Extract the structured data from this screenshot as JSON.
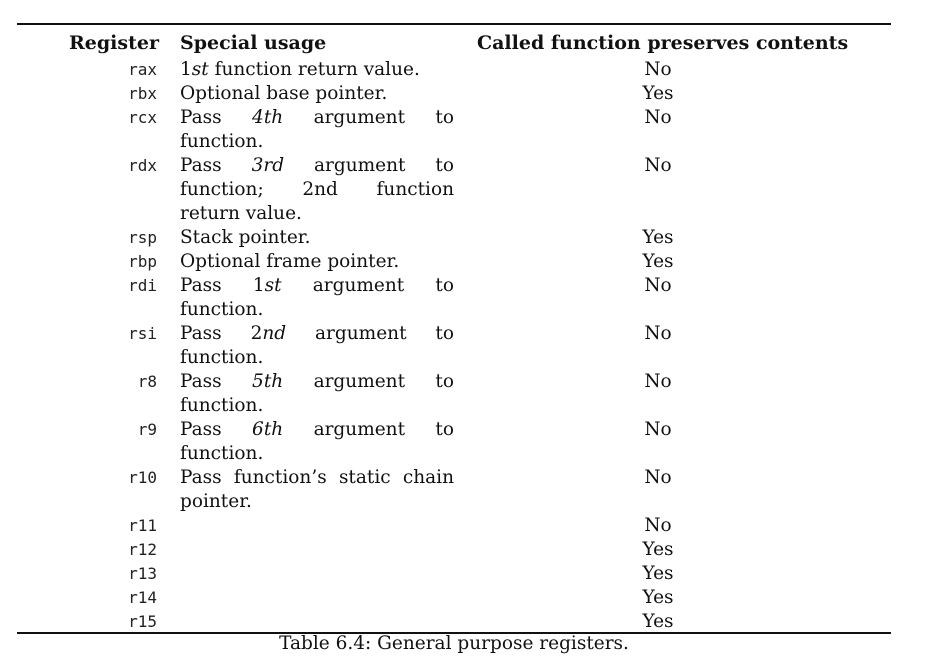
{
  "table": {
    "headers": {
      "register": "Register",
      "usage": "Special usage",
      "preserves": "Called function preserves contents"
    },
    "rows": [
      {
        "register": "rax",
        "usage_parts": [
          "",
          "1",
          "st",
          " function return value."
        ],
        "preserves": "No"
      },
      {
        "register": "rbx",
        "usage_parts": [
          "Optional base pointer.",
          "",
          "",
          ""
        ],
        "preserves": "Yes"
      },
      {
        "register": "rcx",
        "usage_parts": [
          "Pass ",
          "4",
          "th",
          " argument to function."
        ],
        "preserves": "No"
      },
      {
        "register": "rdx",
        "usage_parts": [
          "Pass ",
          "3",
          "rd",
          " argument to function; 2nd function return value."
        ],
        "preserves": "No"
      },
      {
        "register": "rsp",
        "usage_parts": [
          "Stack pointer.",
          "",
          "",
          ""
        ],
        "preserves": "Yes"
      },
      {
        "register": "rbp",
        "usage_parts": [
          "Optional frame pointer.",
          "",
          "",
          ""
        ],
        "preserves": "Yes"
      },
      {
        "register": "rdi",
        "usage_parts": [
          "Pass ",
          "1",
          "st",
          " argument to function."
        ],
        "preserves": "No"
      },
      {
        "register": "rsi",
        "usage_parts": [
          "Pass ",
          "2",
          "nd",
          " argument to function."
        ],
        "preserves": "No"
      },
      {
        "register": "r8",
        "usage_parts": [
          "Pass ",
          "5",
          "th",
          " argument to function."
        ],
        "preserves": "No"
      },
      {
        "register": "r9",
        "usage_parts": [
          "Pass ",
          "6",
          "th",
          " argument to function."
        ],
        "preserves": "No"
      },
      {
        "register": "r10",
        "usage_parts": [
          "Pass function’s static chain pointer.",
          "",
          "",
          ""
        ],
        "preserves": "No"
      },
      {
        "register": "r11",
        "usage_parts": [
          "",
          "",
          "",
          ""
        ],
        "preserves": "No"
      },
      {
        "register": "r12",
        "usage_parts": [
          "",
          "",
          "",
          ""
        ],
        "preserves": "Yes"
      },
      {
        "register": "r13",
        "usage_parts": [
          "",
          "",
          "",
          ""
        ],
        "preserves": "Yes"
      },
      {
        "register": "r14",
        "usage_parts": [
          "",
          "",
          "",
          ""
        ],
        "preserves": "Yes"
      },
      {
        "register": "r15",
        "usage_parts": [
          "",
          "",
          "",
          ""
        ],
        "preserves": "Yes"
      }
    ]
  },
  "caption": "Table 6.4: General purpose registers."
}
